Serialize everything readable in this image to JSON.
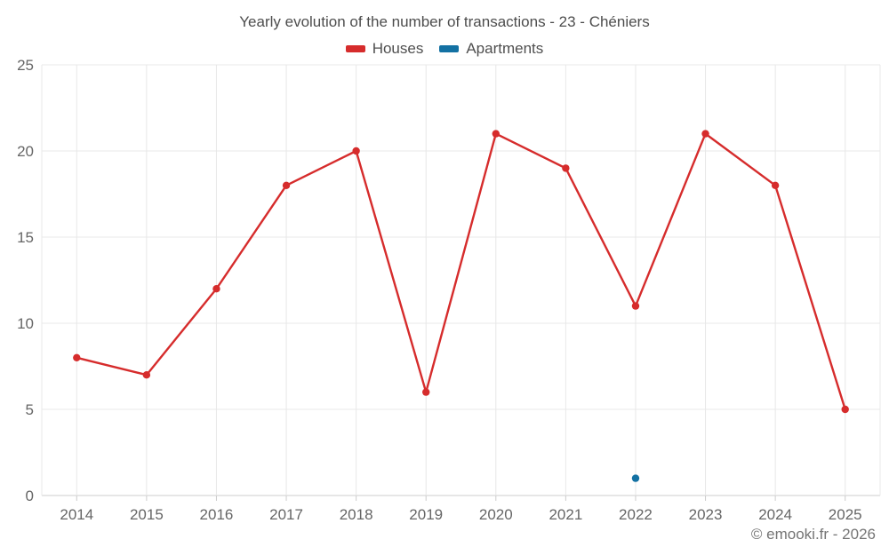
{
  "header": {
    "title": "Yearly evolution of the number of transactions - 23 - Chéniers"
  },
  "legend": {
    "items": [
      {
        "label": "Houses",
        "color": "#d62c2c"
      },
      {
        "label": "Apartments",
        "color": "#1371a3"
      }
    ]
  },
  "footer": {
    "copyright": "© emooki.fr - 2026"
  },
  "colors": {
    "houses": "#d62c2c",
    "apartments": "#1371a3",
    "gridline": "#e8e8e8",
    "axis_line": "#cccccc",
    "tick_text": "#666666",
    "title_text": "#4d4d4d"
  },
  "chart_data": {
    "type": "line",
    "title": "Yearly evolution of the number of transactions - 23 - Chéniers",
    "categories": [
      "2014",
      "2015",
      "2016",
      "2017",
      "2018",
      "2019",
      "2020",
      "2021",
      "2022",
      "2023",
      "2024",
      "2025"
    ],
    "series": [
      {
        "name": "Houses",
        "color": "#d62c2c",
        "values": [
          8,
          7,
          12,
          18,
          20,
          6,
          21,
          19,
          11,
          21,
          18,
          5
        ]
      },
      {
        "name": "Apartments",
        "color": "#1371a3",
        "values": [
          null,
          null,
          null,
          null,
          null,
          null,
          null,
          null,
          1,
          null,
          null,
          null
        ]
      }
    ],
    "xlabel": "",
    "ylabel": "",
    "ylim": [
      0,
      25
    ],
    "yticks": [
      0,
      5,
      10,
      15,
      20,
      25
    ],
    "grid": true,
    "legend_position": "top"
  }
}
